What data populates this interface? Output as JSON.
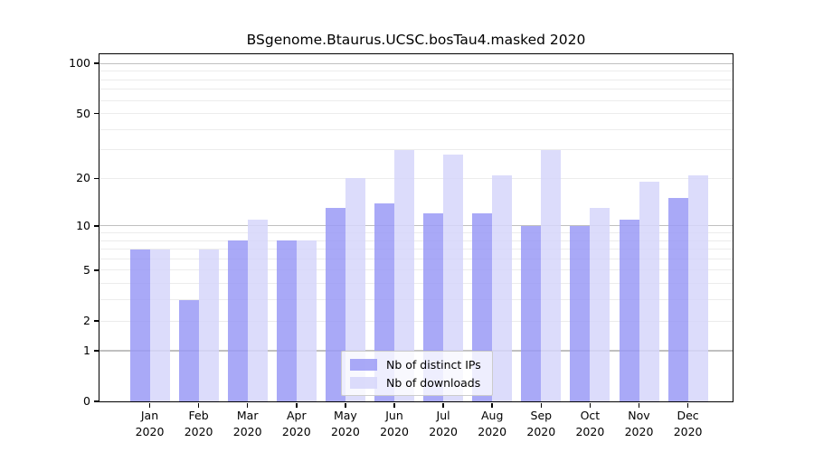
{
  "chart_data": {
    "type": "bar",
    "title": "BSgenome.Btaurus.UCSC.bosTau4.masked 2020",
    "categories": [
      "Jan",
      "Feb",
      "Mar",
      "Apr",
      "May",
      "Jun",
      "Jul",
      "Aug",
      "Sep",
      "Oct",
      "Nov",
      "Dec"
    ],
    "category_year": "2020",
    "series": [
      {
        "name": "Nb of distinct IPs",
        "color": "#9a9af6",
        "values": [
          7,
          3,
          8,
          8,
          13,
          14,
          12,
          12,
          10,
          10,
          11,
          15
        ]
      },
      {
        "name": "Nb of downloads",
        "color": "#d6d6fa",
        "values": [
          7,
          7,
          11,
          8,
          20,
          30,
          28,
          21,
          30,
          13,
          19,
          21
        ]
      }
    ],
    "yscale": "log1p",
    "ylim": [
      0,
      114
    ],
    "yticks": [
      0,
      1,
      2,
      5,
      10,
      20,
      50,
      100
    ],
    "grid": {
      "major_values": [
        1,
        10,
        100
      ],
      "minor_values": [
        2,
        3,
        4,
        5,
        6,
        7,
        8,
        9,
        20,
        30,
        40,
        50,
        60,
        70,
        80,
        90
      ],
      "major_color": "#c0c0c0",
      "minor_color": "#ececec"
    },
    "legend_position": "lower center",
    "xlabel": "",
    "ylabel": ""
  }
}
